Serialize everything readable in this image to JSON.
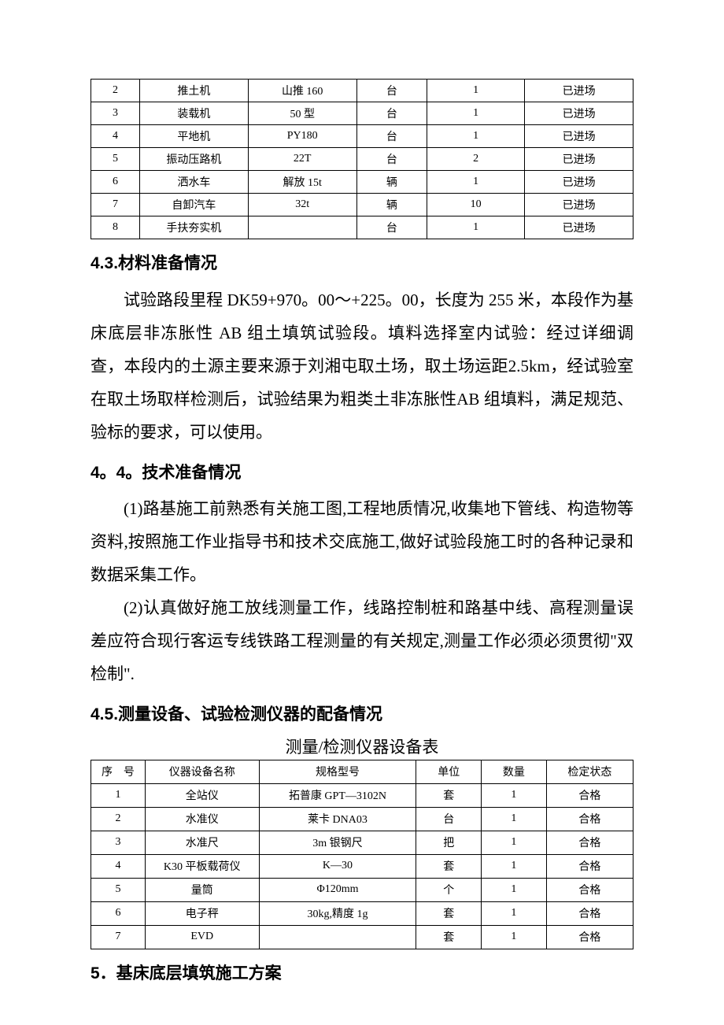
{
  "table1": {
    "rows": [
      [
        "2",
        "推土机",
        "山推 160",
        "台",
        "1",
        "已进场"
      ],
      [
        "3",
        "装载机",
        "50 型",
        "台",
        "1",
        "已进场"
      ],
      [
        "4",
        "平地机",
        "PY180",
        "台",
        "1",
        "已进场"
      ],
      [
        "5",
        "振动压路机",
        "22T",
        "台",
        "2",
        "已进场"
      ],
      [
        "6",
        "洒水车",
        "解放 15t",
        "辆",
        "1",
        "已进场"
      ],
      [
        "7",
        "自卸汽车",
        "32t",
        "辆",
        "10",
        "已进场"
      ],
      [
        "8",
        "手扶夯实机",
        "",
        "台",
        "1",
        "已进场"
      ]
    ]
  },
  "section43": {
    "heading": "4.3.材料准备情况",
    "para": "试验路段里程 DK59+970。00～+225。00，长度为 255 米，本段作为基床底层非冻胀性 AB 组土填筑试验段。填料选择室内试验：经过详细调查，本段内的土源主要来源于刘湘屯取土场，取土场运距2.5km，经试验室在取土场取样检测后，试验结果为粗类土非冻胀性AB 组填料，满足规范、验标的要求，可以使用。"
  },
  "section44": {
    "heading": "4。4。技术准备情况",
    "para1": "(1)路基施工前熟悉有关施工图,工程地质情况,收集地下管线、构造物等资料,按照施工作业指导书和技术交底施工,做好试验段施工时的各种记录和数据采集工作。",
    "para2": "(2)认真做好施工放线测量工作，线路控制桩和路基中线、高程测量误差应符合现行客运专线铁路工程测量的有关规定,测量工作必须必须贯彻\"双检制\"."
  },
  "section45": {
    "heading": "4.5.测量设备、试验检测仪器的配备情况",
    "caption": "测量/检测仪器设备表"
  },
  "table2": {
    "headers": [
      "序　号",
      "仪器设备名称",
      "规格型号",
      "单位",
      "数量",
      "检定状态"
    ],
    "rows": [
      [
        "1",
        "全站仪",
        "拓普康 GPT—3102N",
        "套",
        "1",
        "合格"
      ],
      [
        "2",
        "水准仪",
        "莱卡 DNA03",
        "台",
        "1",
        "合格"
      ],
      [
        "3",
        "水准尺",
        "3m 银钢尺",
        "把",
        "1",
        "合格"
      ],
      [
        "4",
        "K30 平板载荷仪",
        "K—30",
        "套",
        "1",
        "合格"
      ],
      [
        "5",
        "量筒",
        "Φ120mm",
        "个",
        "1",
        "合格"
      ],
      [
        "6",
        "电子秤",
        "30kg,精度 1g",
        "套",
        "1",
        "合格"
      ],
      [
        "7",
        "EVD",
        "",
        "套",
        "1",
        "合格"
      ]
    ]
  },
  "section5": {
    "heading": "5．基床底层填筑施工方案"
  }
}
